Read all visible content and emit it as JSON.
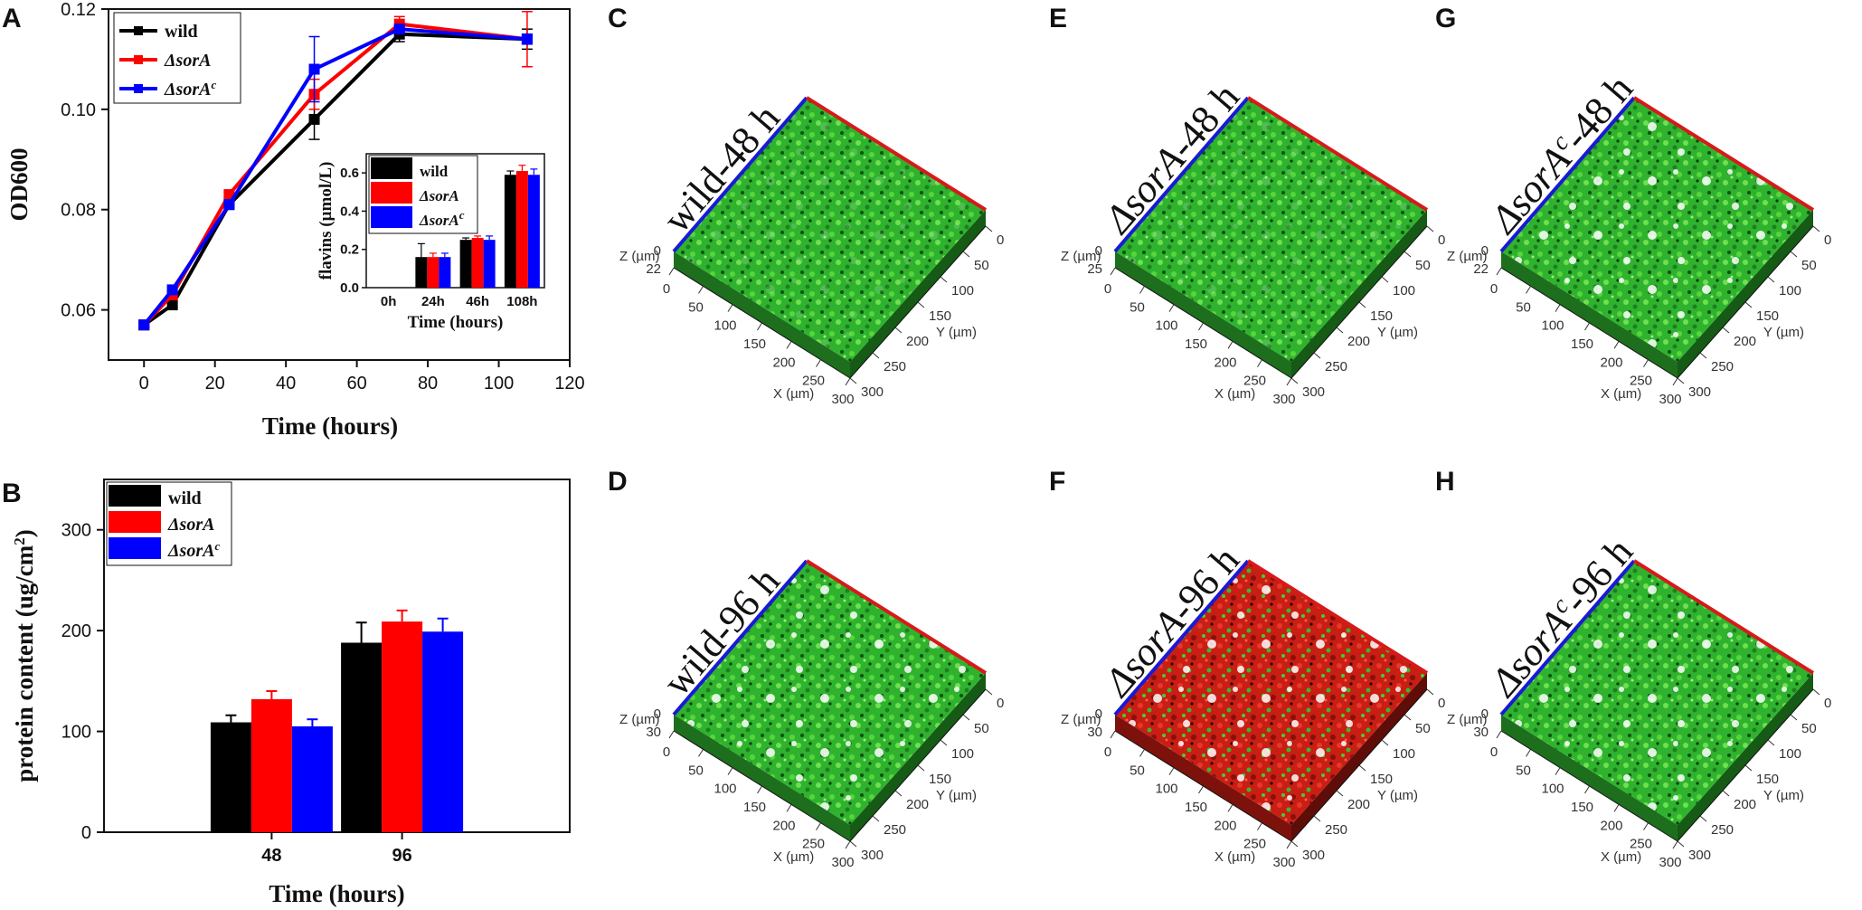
{
  "panels": {
    "A": "A",
    "B": "B",
    "C": "C",
    "D": "D",
    "E": "E",
    "F": "F",
    "G": "G",
    "H": "H"
  },
  "colors": {
    "wild": "#000000",
    "sorA": "#ff0000",
    "sorAc": "#0000ff"
  },
  "chart_data": [
    {
      "id": "A-main",
      "type": "line",
      "xlabel": "Time (hours)",
      "ylabel": "OD600",
      "xlim": [
        -10,
        120
      ],
      "ylim": [
        0.05,
        0.12
      ],
      "xticks": [
        0,
        20,
        40,
        60,
        80,
        100,
        120
      ],
      "yticks": [
        0.06,
        0.08,
        0.1,
        0.12
      ],
      "ytick_labels": [
        "0.06",
        "0.08",
        "0.10",
        "0.12"
      ],
      "legend": [
        "wild",
        "ΔsorA",
        "ΔsorA"
      ],
      "legend_sup": [
        "",
        "",
        "c"
      ],
      "series": [
        {
          "name": "wild",
          "x": [
            0,
            8,
            24,
            48,
            72,
            108
          ],
          "y": [
            0.057,
            0.061,
            0.081,
            0.098,
            0.115,
            0.114
          ],
          "err": [
            0.0005,
            0.0005,
            0.0005,
            0.004,
            0.0015,
            0.002
          ]
        },
        {
          "name": "ΔsorA",
          "x": [
            0,
            8,
            24,
            48,
            72,
            108
          ],
          "y": [
            0.057,
            0.063,
            0.083,
            0.103,
            0.117,
            0.114
          ],
          "err": [
            0.0005,
            0.0005,
            0.0005,
            0.003,
            0.0015,
            0.0055
          ]
        },
        {
          "name": "ΔsorAc",
          "x": [
            0,
            8,
            24,
            48,
            72,
            108
          ],
          "y": [
            0.057,
            0.064,
            0.081,
            0.108,
            0.116,
            0.114
          ],
          "err": [
            0.0005,
            0.0005,
            0.0005,
            0.0065,
            0.0008,
            0.001
          ]
        }
      ]
    },
    {
      "id": "A-inset",
      "type": "bar",
      "xlabel": "Time (hours)",
      "ylabel": "flavins (µmol/L)",
      "ylim": [
        0,
        0.7
      ],
      "yticks": [
        0,
        0.2,
        0.4,
        0.6
      ],
      "ytick_labels": [
        "0.0",
        "0.2",
        "0.4",
        "0.6"
      ],
      "categories": [
        "0h",
        "24h",
        "46h",
        "108h"
      ],
      "legend": [
        "wild",
        "ΔsorA",
        "ΔsorA"
      ],
      "legend_sup": [
        "",
        "",
        "c"
      ],
      "series": [
        {
          "name": "wild",
          "values": [
            0,
            0.16,
            0.25,
            0.59
          ],
          "err": [
            0,
            0.07,
            0.01,
            0.02
          ]
        },
        {
          "name": "ΔsorA",
          "values": [
            0,
            0.16,
            0.26,
            0.61
          ],
          "err": [
            0,
            0.02,
            0.01,
            0.03
          ]
        },
        {
          "name": "ΔsorAc",
          "values": [
            0,
            0.16,
            0.25,
            0.59
          ],
          "err": [
            0,
            0.02,
            0.02,
            0.03
          ]
        }
      ]
    },
    {
      "id": "B",
      "type": "bar",
      "xlabel": "Time (hours)",
      "ylabel": "protein content (ug/cm",
      "ylabel_sup": "2",
      "ylabel_end": ")",
      "ylim": [
        0,
        350
      ],
      "yticks": [
        0,
        100,
        200,
        300
      ],
      "categories": [
        "48",
        "96"
      ],
      "legend": [
        "wild",
        "ΔsorA",
        "ΔsorA"
      ],
      "legend_sup": [
        "",
        "",
        "c"
      ],
      "series": [
        {
          "name": "wild",
          "values": [
            109,
            188
          ],
          "err": [
            7,
            20
          ]
        },
        {
          "name": "ΔsorA",
          "values": [
            132,
            209
          ],
          "err": [
            8,
            11
          ]
        },
        {
          "name": "ΔsorAc",
          "values": [
            105,
            199
          ],
          "err": [
            7,
            13
          ]
        }
      ]
    }
  ],
  "clsm": [
    {
      "panel": "C",
      "prefix": "wild",
      "sup": "",
      "suffix": "-48 h",
      "z": "22",
      "fill": "green"
    },
    {
      "panel": "D",
      "prefix": "wild",
      "sup": "",
      "suffix": "-96 h",
      "z": "30",
      "fill": "green"
    },
    {
      "panel": "E",
      "prefix": "ΔsorA",
      "sup": "",
      "suffix": "-48 h",
      "z": "25",
      "fill": "green"
    },
    {
      "panel": "F",
      "prefix": "ΔsorA",
      "sup": "",
      "suffix": "-96 h",
      "z": "30",
      "fill": "red"
    },
    {
      "panel": "G",
      "prefix": "ΔsorA",
      "sup": "c",
      "suffix": "-48 h",
      "z": "22",
      "fill": "green"
    },
    {
      "panel": "H",
      "prefix": "ΔsorA",
      "sup": "c",
      "suffix": "-96 h",
      "z": "30",
      "fill": "green"
    }
  ],
  "clsm_axes": {
    "z_label": "Z (µm)",
    "x_label": "X (µm)",
    "y_label": "Y (µm)",
    "z_zero": "0",
    "x_ticks": [
      "0",
      "50",
      "100",
      "150",
      "200",
      "250",
      "300"
    ],
    "y_ticks": [
      "0",
      "50",
      "100",
      "150",
      "200",
      "250",
      "300"
    ]
  }
}
